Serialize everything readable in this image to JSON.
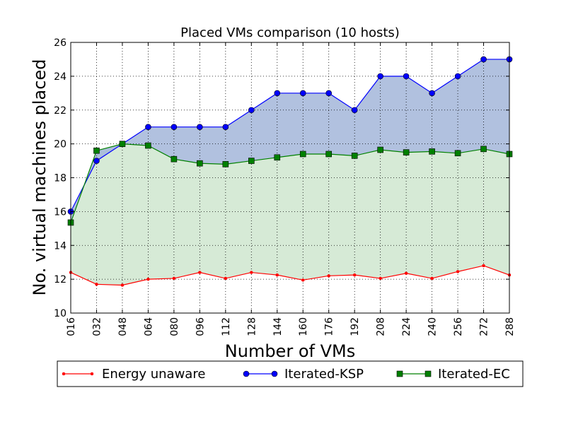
{
  "chart_data": {
    "type": "line",
    "title": "Placed VMs comparison (10 hosts)",
    "xlabel": "Number of VMs",
    "ylabel": "No. virtual machines placed",
    "categories": [
      "016",
      "032",
      "048",
      "064",
      "080",
      "096",
      "112",
      "128",
      "144",
      "160",
      "176",
      "192",
      "208",
      "224",
      "240",
      "256",
      "272",
      "288"
    ],
    "ylim": [
      10,
      26
    ],
    "yticks": [
      10,
      12,
      14,
      16,
      18,
      20,
      22,
      24,
      26
    ],
    "grid": true,
    "legend_position": "bottom",
    "series": [
      {
        "name": "Energy unaware",
        "color": "#ff0000",
        "marker": "dot",
        "values": [
          12.4,
          11.7,
          11.65,
          12.0,
          12.05,
          12.4,
          12.05,
          12.4,
          12.25,
          11.95,
          12.2,
          12.25,
          12.05,
          12.35,
          12.05,
          12.45,
          12.8,
          12.25
        ]
      },
      {
        "name": "Iterated-KSP",
        "color": "#0000ff",
        "marker": "circle",
        "values": [
          16,
          19,
          20,
          21,
          21,
          21,
          21,
          22,
          23,
          23,
          23,
          22,
          24,
          24,
          23,
          24,
          25,
          25
        ]
      },
      {
        "name": "Iterated-EC",
        "color": "#008000",
        "marker": "square",
        "values": [
          15.35,
          19.6,
          20.0,
          19.9,
          19.1,
          18.85,
          18.8,
          19.0,
          19.2,
          19.4,
          19.4,
          19.3,
          19.65,
          19.5,
          19.55,
          19.45,
          19.7,
          19.4
        ]
      }
    ],
    "fills": [
      {
        "between": [
          "Energy unaware",
          "Iterated-EC"
        ],
        "color": "#cfe6cf"
      },
      {
        "between": [
          "Iterated-EC",
          "Iterated-KSP"
        ],
        "color": "#a3b6d9"
      }
    ]
  }
}
